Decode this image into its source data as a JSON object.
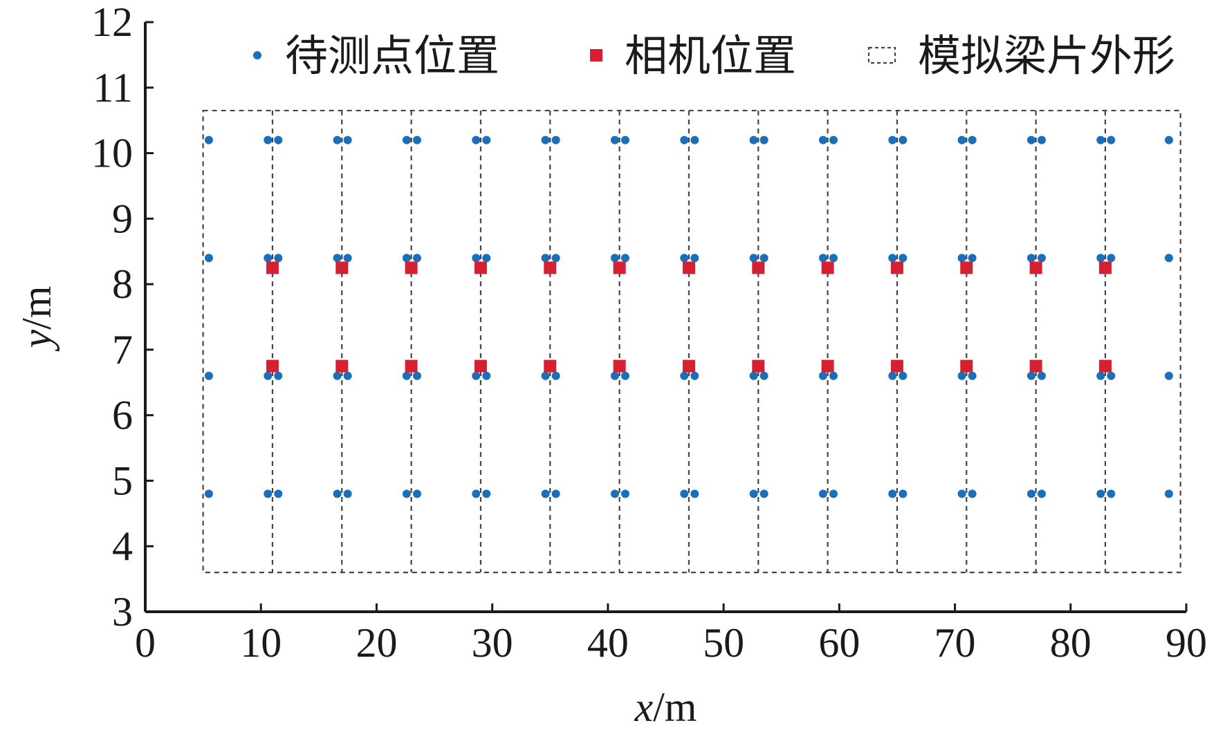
{
  "chart_data": {
    "type": "scatter",
    "title": "",
    "xlabel": {
      "var": "x",
      "unit": "/m"
    },
    "ylabel": {
      "var": "y",
      "unit": "/m"
    },
    "xlim": [
      0,
      90
    ],
    "ylim": [
      3,
      12
    ],
    "xticks": [
      "0",
      "10",
      "20",
      "30",
      "40",
      "50",
      "60",
      "70",
      "80",
      "90"
    ],
    "yticks": [
      "3",
      "4",
      "5",
      "6",
      "7",
      "8",
      "9",
      "10",
      "11",
      "12"
    ],
    "grid": false,
    "legend_position": "top",
    "legend": [
      {
        "label": "待测点位置",
        "marker": "circle",
        "color": "#1a6fba"
      },
      {
        "label": "相机位置",
        "marker": "square",
        "color": "#d42030"
      },
      {
        "label": "模拟梁片外形",
        "marker": "dashed-box",
        "color": "#444444"
      }
    ],
    "series": [
      {
        "name": "待测点位置",
        "marker": "circle",
        "color": "#1a6fba",
        "row_y": [
          10.2,
          8.4,
          6.6,
          4.8
        ],
        "x": [
          5.5,
          10.6,
          11.5,
          16.6,
          17.5,
          22.6,
          23.5,
          28.6,
          29.5,
          34.6,
          35.5,
          40.6,
          41.5,
          46.6,
          47.5,
          52.6,
          53.5,
          58.6,
          59.5,
          64.6,
          65.5,
          70.6,
          71.5,
          76.6,
          77.5,
          82.6,
          83.5,
          88.5
        ]
      },
      {
        "name": "相机位置",
        "marker": "square",
        "color": "#d42030",
        "row_y": [
          8.25,
          6.75
        ],
        "x": [
          11,
          17,
          23,
          29,
          35,
          41,
          47,
          53,
          59,
          65,
          71,
          77,
          83
        ]
      }
    ],
    "outline": {
      "name": "模拟梁片外形",
      "style": "dashed",
      "color": "#444444",
      "x_range": [
        5,
        89.5
      ],
      "y_range": [
        3.6,
        10.65
      ],
      "inner_x": [
        11,
        17,
        23,
        29,
        35,
        41,
        47,
        53,
        59,
        65,
        71,
        77,
        83
      ]
    }
  }
}
